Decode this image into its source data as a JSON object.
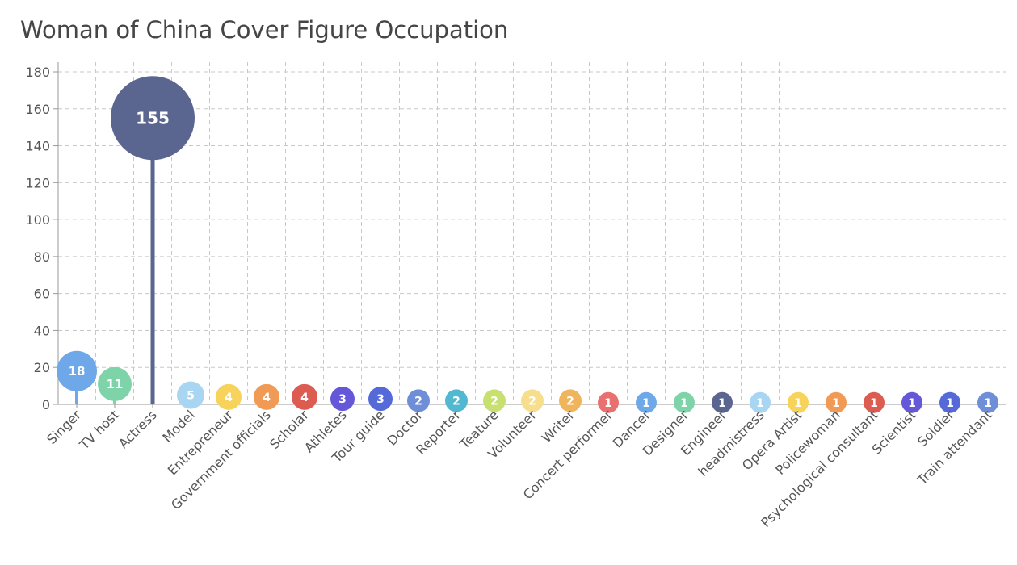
{
  "title": "Woman of China Cover Figure Occupation",
  "chart_data": {
    "type": "bar",
    "subtype": "lollipop-bubble",
    "title": "Woman of China Cover Figure Occupation",
    "xlabel": "",
    "ylabel": "",
    "ylim": [
      0,
      180
    ],
    "yticks": [
      0,
      20,
      40,
      60,
      80,
      100,
      120,
      140,
      160,
      180
    ],
    "grid": true,
    "legend": "none",
    "categories": [
      "Singer",
      "TV host",
      "Actress",
      "Model",
      "Entrepreneur",
      "Government officials",
      "Scholar",
      "Athletes",
      "Tour guide",
      "Doctor",
      "Reporter",
      "Teature",
      "Volunteer",
      "Writer",
      "Concert performer",
      "Dancer",
      "Designer",
      "Engineer",
      "headmistress",
      "Opera Artist",
      "Policewoman",
      "Psychological consultant",
      "Scientist",
      "Soldier",
      "Train attendant"
    ],
    "values": [
      18,
      11,
      155,
      5,
      4,
      4,
      4,
      3,
      3,
      2,
      2,
      2,
      2,
      2,
      1,
      1,
      1,
      1,
      1,
      1,
      1,
      1,
      1,
      1,
      1
    ],
    "colors": [
      "#6fa8e8",
      "#7fd3a8",
      "#5a6690",
      "#a8d6f2",
      "#f7d35c",
      "#f19a55",
      "#dc5c52",
      "#6558d8",
      "#5569d8",
      "#6e8fd8",
      "#52b8d0",
      "#c8e070",
      "#f7de8c",
      "#f0b45c",
      "#e87070",
      "#6fa8e8",
      "#7fd3a8",
      "#5a6690",
      "#a8d6f2",
      "#f7d35c",
      "#f19a55",
      "#dc5c52",
      "#6558d8",
      "#5569d8",
      "#6e8fd8"
    ]
  }
}
